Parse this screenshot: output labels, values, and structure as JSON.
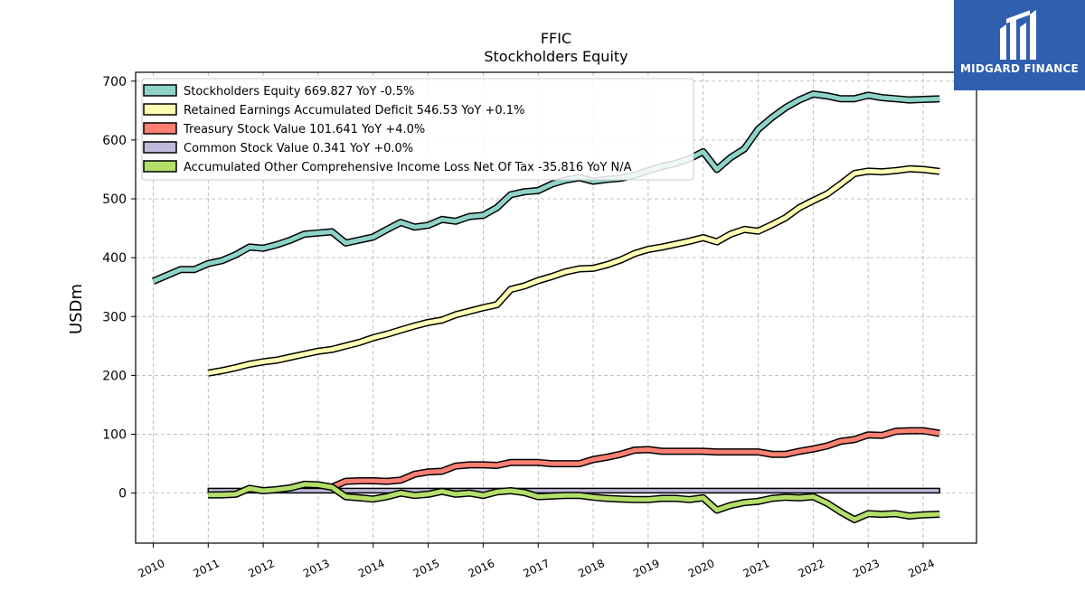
{
  "brand": {
    "name": "MIDGARD FINANCE",
    "accent": "#2f5fae"
  },
  "chart_data": {
    "type": "line",
    "title": "FFIC",
    "subtitle": "Stockholders  Equity",
    "ylabel": "USDm",
    "xlabel": "",
    "ylim": [
      -85,
      715
    ],
    "xlim": [
      2009.68,
      2024.97
    ],
    "yticks": [
      0,
      100,
      200,
      300,
      400,
      500,
      600,
      700
    ],
    "xticks": [
      "2010",
      "2011",
      "2012",
      "2013",
      "2014",
      "2015",
      "2016",
      "2017",
      "2018",
      "2019",
      "2020",
      "2021",
      "2022",
      "2023",
      "2024"
    ],
    "grid": true,
    "legend_position": "top-left",
    "series": [
      {
        "name": "Stockholders Equity",
        "legend": "Stockholders Equity  669.827 YoY -0.5%",
        "color": "#8dd3c7",
        "x": [
          2010.0,
          2010.25,
          2010.5,
          2010.75,
          2011.0,
          2011.25,
          2011.5,
          2011.75,
          2012.0,
          2012.25,
          2012.5,
          2012.75,
          2013.0,
          2013.25,
          2013.5,
          2013.75,
          2014.0,
          2014.25,
          2014.5,
          2014.75,
          2015.0,
          2015.25,
          2015.5,
          2015.75,
          2016.0,
          2016.25,
          2016.5,
          2016.75,
          2017.0,
          2017.25,
          2017.5,
          2017.75,
          2018.0,
          2018.25,
          2018.5,
          2018.75,
          2019.0,
          2019.25,
          2019.5,
          2019.75,
          2020.0,
          2020.25,
          2020.5,
          2020.75,
          2021.0,
          2021.25,
          2021.5,
          2021.75,
          2022.0,
          2022.25,
          2022.5,
          2022.75,
          2023.0,
          2023.25,
          2023.5,
          2023.75,
          2024.0,
          2024.3
        ],
        "y": [
          360,
          370,
          380,
          380,
          390,
          395,
          405,
          418,
          416,
          422,
          430,
          440,
          442,
          444,
          425,
          430,
          435,
          448,
          460,
          452,
          455,
          465,
          462,
          470,
          472,
          485,
          507,
          512,
          514,
          525,
          532,
          536,
          530,
          533,
          535,
          540,
          548,
          555,
          560,
          568,
          580,
          550,
          570,
          585,
          618,
          638,
          655,
          668,
          678,
          675,
          670,
          670,
          676,
          672,
          670,
          668,
          669,
          669.827
        ]
      },
      {
        "name": "Retained Earnings Accumulated Deficit",
        "legend": "Retained Earnings Accumulated Deficit  546.53 YoY +0.1%",
        "color": "#ffffb3",
        "x": [
          2011.0,
          2011.25,
          2011.5,
          2011.75,
          2012.0,
          2012.25,
          2012.5,
          2012.75,
          2013.0,
          2013.25,
          2013.5,
          2013.75,
          2014.0,
          2014.25,
          2014.5,
          2014.75,
          2015.0,
          2015.25,
          2015.5,
          2015.75,
          2016.0,
          2016.25,
          2016.5,
          2016.75,
          2017.0,
          2017.25,
          2017.5,
          2017.75,
          2018.0,
          2018.25,
          2018.5,
          2018.75,
          2019.0,
          2019.25,
          2019.5,
          2019.75,
          2020.0,
          2020.25,
          2020.5,
          2020.75,
          2021.0,
          2021.25,
          2021.5,
          2021.75,
          2022.0,
          2022.25,
          2022.5,
          2022.75,
          2023.0,
          2023.25,
          2023.5,
          2023.75,
          2024.0,
          2024.3
        ],
        "y": [
          204,
          208,
          213,
          219,
          223,
          226,
          231,
          236,
          241,
          244,
          250,
          256,
          264,
          270,
          277,
          284,
          290,
          294,
          303,
          309,
          315,
          320,
          346,
          352,
          361,
          368,
          376,
          381,
          382,
          388,
          396,
          407,
          414,
          418,
          423,
          428,
          434,
          427,
          440,
          448,
          445,
          456,
          468,
          485,
          497,
          508,
          525,
          543,
          547,
          546,
          548,
          551,
          550,
          546.53
        ]
      },
      {
        "name": "Treasury Stock Value",
        "legend": "Treasury Stock Value  101.641 YoY +4.0%",
        "color": "#fb8072",
        "x": [
          2013.25,
          2013.5,
          2013.75,
          2014.0,
          2014.25,
          2014.5,
          2014.75,
          2015.0,
          2015.25,
          2015.5,
          2015.75,
          2016.0,
          2016.25,
          2016.5,
          2016.75,
          2017.0,
          2017.25,
          2017.5,
          2017.75,
          2018.0,
          2018.25,
          2018.5,
          2018.75,
          2019.0,
          2019.25,
          2019.5,
          2019.75,
          2020.0,
          2020.25,
          2020.5,
          2020.75,
          2021.0,
          2021.25,
          2021.5,
          2021.75,
          2022.0,
          2022.25,
          2022.5,
          2022.75,
          2023.0,
          2023.25,
          2023.5,
          2023.75,
          2024.0,
          2024.3
        ],
        "y": [
          10,
          20,
          21,
          21,
          20,
          22,
          32,
          36,
          37,
          46,
          48,
          48,
          47,
          52,
          52,
          52,
          50,
          50,
          50,
          57,
          61,
          66,
          73,
          74,
          71,
          71,
          71,
          71,
          70,
          70,
          70,
          70,
          66,
          66,
          71,
          75,
          80,
          88,
          91,
          99,
          98,
          105,
          106,
          106,
          101.641
        ]
      },
      {
        "name": "Common Stock Value",
        "legend": "Common Stock Value  0.341 YoY +0.0%",
        "color": "#bebada",
        "x": [
          2011.0,
          2024.3
        ],
        "y": [
          0.341,
          0.341
        ],
        "rendered_as_bar_height": 5
      },
      {
        "name": "Accumulated Other Comprehensive Income Loss Net Of Tax",
        "legend": "Accumulated Other Comprehensive Income Loss Net Of Tax  -35.816 YoY N/A",
        "color": "#b3de69",
        "x": [
          2011.0,
          2011.25,
          2011.5,
          2011.75,
          2012.0,
          2012.25,
          2012.5,
          2012.75,
          2013.0,
          2013.25,
          2013.5,
          2013.75,
          2014.0,
          2014.25,
          2014.5,
          2014.75,
          2015.0,
          2015.25,
          2015.5,
          2015.75,
          2016.0,
          2016.25,
          2016.5,
          2016.75,
          2017.0,
          2017.25,
          2017.5,
          2017.75,
          2018.0,
          2018.25,
          2018.5,
          2018.75,
          2019.0,
          2019.25,
          2019.5,
          2019.75,
          2020.0,
          2020.25,
          2020.5,
          2020.75,
          2021.0,
          2021.25,
          2021.5,
          2021.75,
          2022.0,
          2022.25,
          2022.5,
          2022.75,
          2023.0,
          2023.25,
          2023.5,
          2023.75,
          2024.0,
          2024.3
        ],
        "y": [
          -3,
          -3,
          -2,
          8,
          4,
          6,
          9,
          15,
          14,
          10,
          -6,
          -8,
          -10,
          -6,
          0,
          -4,
          -2,
          3,
          -2,
          0,
          -4,
          2,
          4,
          1,
          -6,
          -5,
          -4,
          -4,
          -7,
          -9,
          -10,
          -11,
          -11,
          -9,
          -9,
          -11,
          -8,
          -29,
          -21,
          -16,
          -14,
          -9,
          -7,
          -8,
          -6,
          -17,
          -32,
          -45,
          -35,
          -36,
          -35,
          -39,
          -37,
          -35.816
        ]
      }
    ]
  }
}
